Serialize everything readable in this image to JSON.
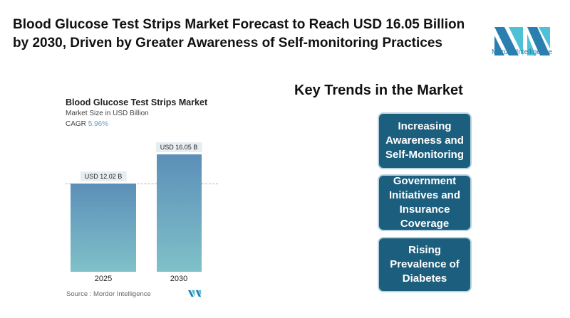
{
  "headline": "Blood Glucose Test Strips Market Forecast to Reach USD 16.05 Billion by 2030, Driven by Greater Awareness of Self-monitoring Practices",
  "logo": {
    "text": "Mordor Intelligence",
    "colors": [
      "#2a7fb0",
      "#4fc1d6"
    ]
  },
  "key_trends": {
    "title": "Key Trends in the Market",
    "items": [
      "Increasing Awareness and Self-Monitoring",
      "Government Initiatives and Insurance Coverage",
      "Rising Prevalence of Diabetes"
    ],
    "color": "#1c5e7e"
  },
  "chart_data": {
    "type": "bar",
    "title": "Blood Glucose Test Strips Market",
    "subtitle": "Market Size in USD Billion",
    "cagr_label": "CAGR",
    "cagr_value": "5.96%",
    "categories": [
      "2025",
      "2030"
    ],
    "values": [
      12.02,
      16.05
    ],
    "data_labels": [
      "USD 12.02 B",
      "USD 16.05 B"
    ],
    "ylim": [
      0,
      16.05
    ],
    "grid": false,
    "source": "Source :  Mordor Intelligence"
  }
}
